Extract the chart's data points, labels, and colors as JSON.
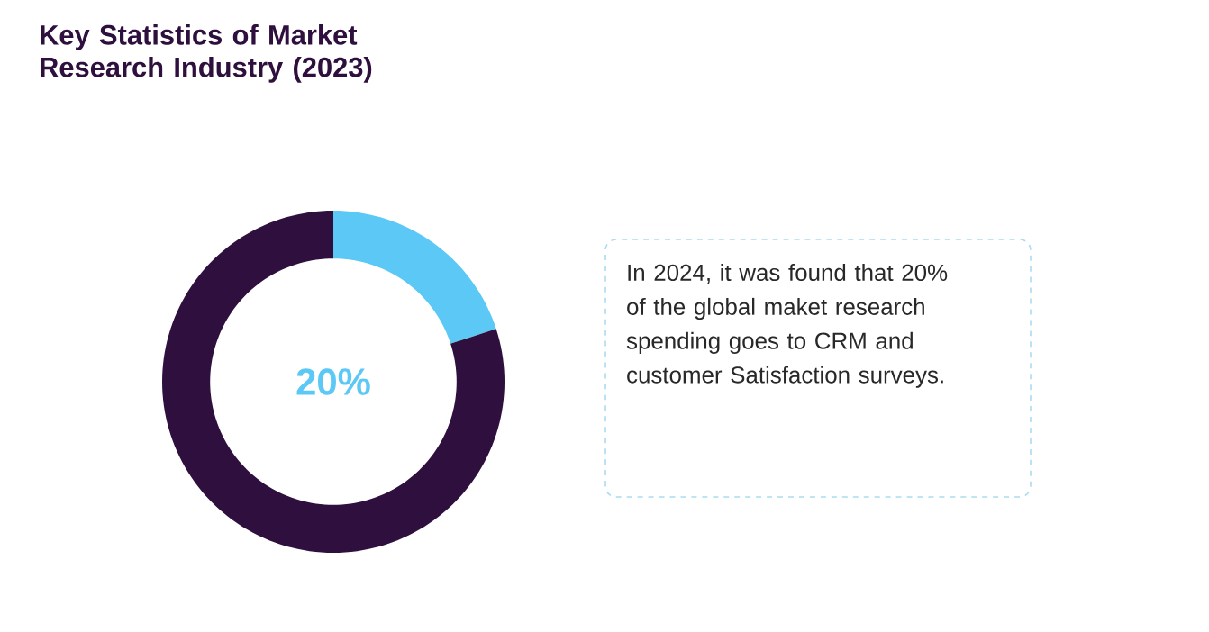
{
  "chart_data": {
    "type": "donut",
    "title": "Key Statistics of Market Research Industry (2023)",
    "categories": [
      null,
      null
    ],
    "values": [
      20,
      80
    ],
    "colors": [
      "#5bc8f5",
      "#2e0f3d"
    ],
    "annotations": [
      "20%",
      "In 2024, it was found that 20% of the global maket research spending goes to CRM and customer Satisfaction surveys."
    ]
  }
}
